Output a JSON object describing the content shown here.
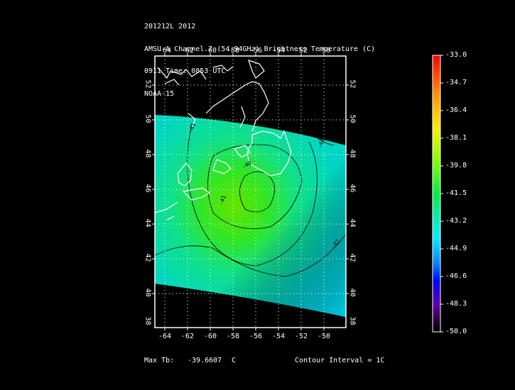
{
  "header": {
    "line1": "201212L 2012",
    "line2": "AMSU-A Channel 7 (54.94GHz) Brightness Temperature (C)",
    "line3": "0911 Time: 0853 UTC",
    "line4": "NOAA-15"
  },
  "map": {
    "lon_ticks": [
      "-64",
      "-62",
      "-60",
      "-58",
      "-56",
      "-54",
      "-52",
      "-50"
    ],
    "lat_ticks": [
      "52",
      "50",
      "48",
      "46",
      "44",
      "42",
      "40",
      "38"
    ]
  },
  "colorbar": {
    "labels": [
      "-33.0",
      "-34.7",
      "-36.4",
      "-38.1",
      "-39.8",
      "-41.5",
      "-43.2",
      "-44.9",
      "-46.6",
      "-48.3",
      "-50.0"
    ]
  },
  "footer": {
    "max_tb_label": "Max Tb:",
    "max_tb_value": "-39.6607",
    "max_tb_unit": "C",
    "contour_interval": "Contour Interval = 1C"
  },
  "contour_labels": [
    "-41",
    "-42",
    "-40",
    "-42",
    "-41"
  ]
}
